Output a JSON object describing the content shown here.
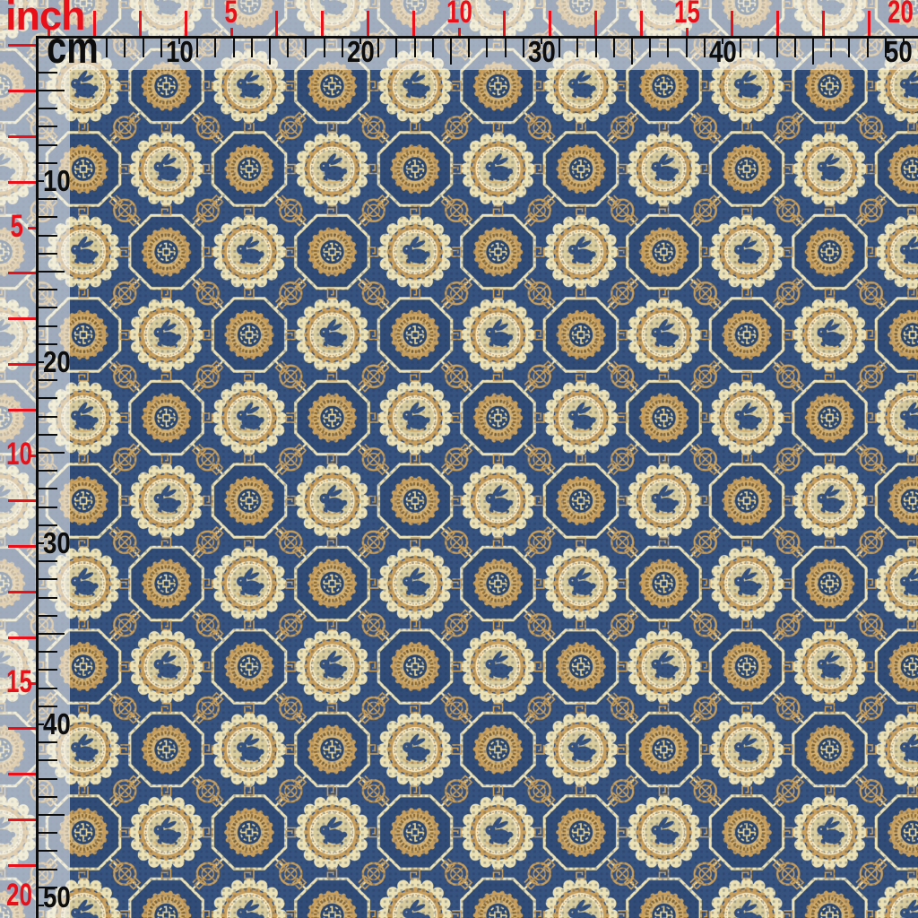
{
  "photo": {
    "subject": "navy-gold chinese brocade fabric swatch with rabbit and coin medallion pattern"
  },
  "rulers": {
    "inch_label": "inch",
    "cm_label": "cm",
    "inch_numbers": [
      5,
      10,
      15,
      20
    ],
    "cm_numbers": [
      10,
      20,
      30,
      40,
      50
    ],
    "inch_color": "#e8111a",
    "cm_color": "#0d0d0d"
  },
  "fabric": {
    "motifs": [
      "scalloped-rabbit-medallion",
      "octagon-coin-medallion",
      "knot-circle",
      "greek-key-ornament"
    ],
    "colors": {
      "navy": "#36527f",
      "navy_dark": "#1f3456",
      "oct_fill": "#2a4670",
      "cream": "#ece1b4",
      "cream_bright": "#f2e9c8",
      "tan": "#c79e5c",
      "tan_light": "#d4b274",
      "gold_dark": "#8e6c34",
      "rabbit_bg": "#d8cb9c",
      "coin_navy": "#2b4770",
      "shou": "#e6d49a",
      "ruler_red": "#e8111a",
      "ruler_black": "#0d0d0d"
    }
  }
}
